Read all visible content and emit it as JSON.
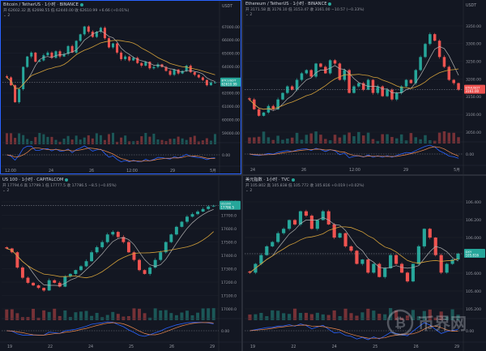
{
  "colors": {
    "bg": "#131722",
    "up": "#26a69a",
    "down": "#ef5350",
    "ma_short": "#b0b0b0",
    "ma_long": "#d4a13a",
    "macd": "#2962ff",
    "signal": "#ef8a4e",
    "grid": "#1e222d",
    "border": "#2962ff"
  },
  "panels": [
    {
      "id": "btc",
      "title": "Bitcoin / TetherUS · 1小时 · BINANCE",
      "ohlc": "开 62602.32  高 62698.55  低 62440.00  收 62610.99  +6.66 (+0.01%)",
      "axis_top_label": "USDT",
      "indicator": "2",
      "price_ticks": [
        "67000.00",
        "66000.00",
        "65000.00",
        "64000.00",
        "63000.00",
        "62000.00",
        "61000.00",
        "60000.00",
        "59000.00"
      ],
      "price_tag": {
        "label": "BTCUSDT",
        "value": "62610.99"
      },
      "osc_zero": "0.00",
      "x_labels": [
        "12:00",
        "24",
        "26",
        "12:00",
        "29",
        "5月"
      ],
      "chart_data": {
        "type": "candlestick",
        "ylim": [
          58500,
          67500
        ],
        "closes": [
          63000,
          62400,
          61100,
          62100,
          63800,
          64600,
          64900,
          64200,
          64300,
          64700,
          64900,
          64500,
          65000,
          64600,
          64800,
          65400,
          64900,
          65800,
          66300,
          66900,
          66500,
          66100,
          66500,
          66800,
          66000,
          65300,
          65600,
          64900,
          64400,
          64600,
          64300,
          64500,
          64100,
          63900,
          64200,
          63700,
          63800,
          64000,
          63800,
          63500,
          63200,
          63600,
          63300,
          63500,
          63900,
          63400,
          63200,
          63000,
          62800,
          62400,
          62600,
          62610
        ]
      }
    },
    {
      "id": "eth",
      "title": "Ethereum / TetherUS · 1小时 · BINANCE",
      "ohlc": "开 3171.58  高 3176.10  低 3153.47  收 3161.00  −10.57 (−0.33%)",
      "axis_top_label": "USDT",
      "indicator": "2",
      "price_ticks": [
        "3350.00",
        "3300.00",
        "3250.00",
        "3200.00",
        "3150.00",
        "3100.00",
        "3050.00"
      ],
      "price_tag": {
        "label": "ETHUSDT",
        "value": "3161.00"
      },
      "osc_zero": "0.00",
      "x_labels": [
        "24",
        "26",
        "12:00",
        "29",
        "5月"
      ],
      "chart_data": {
        "type": "candlestick",
        "ylim": [
          3020,
          3380
        ],
        "closes": [
          3130,
          3100,
          3080,
          3090,
          3110,
          3100,
          3130,
          3150,
          3170,
          3160,
          3190,
          3210,
          3220,
          3200,
          3240,
          3230,
          3210,
          3250,
          3240,
          3190,
          3220,
          3150,
          3170,
          3180,
          3160,
          3190,
          3150,
          3170,
          3140,
          3160,
          3130,
          3150,
          3170,
          3190,
          3180,
          3220,
          3260,
          3300,
          3330,
          3310,
          3260,
          3230,
          3190,
          3180,
          3160
        ]
      }
    },
    {
      "id": "us100",
      "title": "US 100 · 1小时 · CAPITALCOM",
      "ohlc": "开 17794.6  高 17799.1  低 17777.5  收 17786.5  −8.5 (−0.05%)",
      "axis_top_label": "",
      "indicator": "2",
      "price_ticks": [
        "17800.0",
        "17700.0",
        "17600.0",
        "17500.0",
        "17400.0",
        "17300.0",
        "17200.0",
        "17100.0",
        "17000.0"
      ],
      "price_tag": {
        "label": "US100",
        "value": "17786.5"
      },
      "osc_zero": "0.00",
      "x_labels": [
        "19",
        "22",
        "24",
        "25",
        "26",
        "29"
      ],
      "chart_data": {
        "type": "candlestick",
        "ylim": [
          16950,
          17880
        ],
        "closes": [
          17450,
          17420,
          17300,
          17220,
          17180,
          17160,
          17140,
          17120,
          17200,
          17180,
          17150,
          17230,
          17250,
          17280,
          17310,
          17350,
          17420,
          17460,
          17500,
          17560,
          17580,
          17540,
          17500,
          17420,
          17360,
          17280,
          17250,
          17300,
          17360,
          17420,
          17500,
          17560,
          17620,
          17660,
          17700,
          17720,
          17740,
          17760,
          17780,
          17786
        ]
      }
    },
    {
      "id": "dxy",
      "title": "美元指数 · 1小时 · TVC",
      "ohlc": "开 105.802  高 105.838  低 105.772  收 105.816  +0.019 (+0.02%)",
      "axis_top_label": "",
      "indicator": "2",
      "price_ticks": [
        "106.400",
        "106.200",
        "106.000",
        "105.800",
        "105.600",
        "105.400",
        "105.200"
      ],
      "price_tag": {
        "label": "DXY",
        "value": "105.816"
      },
      "osc_zero": "0.00",
      "x_labels": [
        "19",
        "22",
        "24",
        "25",
        "26",
        "29"
      ],
      "chart_data": {
        "type": "candlestick",
        "ylim": [
          105.15,
          106.5
        ],
        "closes": [
          105.6,
          105.7,
          105.8,
          105.9,
          105.95,
          106.05,
          106.1,
          106.2,
          106.15,
          106.3,
          106.25,
          106.1,
          106.2,
          106.3,
          106.15,
          106.0,
          106.05,
          105.9,
          105.85,
          105.7,
          105.75,
          105.6,
          105.7,
          105.55,
          105.65,
          105.8,
          105.7,
          105.6,
          105.5,
          105.7,
          105.9,
          106.1,
          106.0,
          105.8,
          105.6,
          105.7,
          105.75,
          105.816
        ]
      }
    }
  ],
  "watermark": "币界网"
}
